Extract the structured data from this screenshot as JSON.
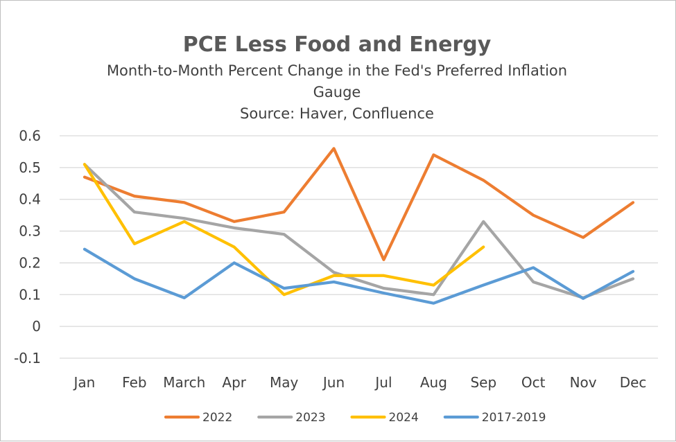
{
  "chart_data": {
    "type": "line",
    "title": "PCE Less Food and Energy",
    "subtitle_lines": [
      "Month-to-Month Percent Change in the Fed's Preferred Inflation",
      "Gauge",
      "Source: Haver, Confluence"
    ],
    "xlabel": "",
    "ylabel": "",
    "categories": [
      "Jan",
      "Feb",
      "March",
      "Apr",
      "May",
      "Jun",
      "Jul",
      "Aug",
      "Sep",
      "Oct",
      "Nov",
      "Dec"
    ],
    "ylim": [
      -0.1,
      0.6
    ],
    "yticks": [
      -0.1,
      0,
      0.1,
      0.2,
      0.3,
      0.4,
      0.5,
      0.6
    ],
    "ytick_labels": [
      "-0.1",
      "0",
      "0.1",
      "0.2",
      "0.3",
      "0.4",
      "0.5",
      "0.6"
    ],
    "grid": true,
    "legend_position": "bottom",
    "series": [
      {
        "name": "2022",
        "color": "#ED7D31",
        "values": [
          0.47,
          0.41,
          0.39,
          0.33,
          0.36,
          0.56,
          0.21,
          0.54,
          0.46,
          0.35,
          0.28,
          0.39
        ]
      },
      {
        "name": "2023",
        "color": "#A5A5A5",
        "values": [
          0.51,
          0.36,
          0.34,
          0.31,
          0.29,
          0.17,
          0.12,
          0.1,
          0.33,
          0.14,
          0.09,
          0.15
        ]
      },
      {
        "name": "2024",
        "color": "#FFC000",
        "values": [
          0.51,
          0.26,
          0.33,
          0.25,
          0.1,
          0.16,
          0.16,
          0.13,
          0.25,
          null,
          null,
          null
        ]
      },
      {
        "name": "2017-2019",
        "color": "#5B9BD5",
        "values": [
          0.243,
          0.15,
          0.09,
          0.2,
          0.12,
          0.14,
          0.105,
          0.073,
          0.13,
          0.185,
          0.088,
          0.173
        ]
      }
    ]
  }
}
